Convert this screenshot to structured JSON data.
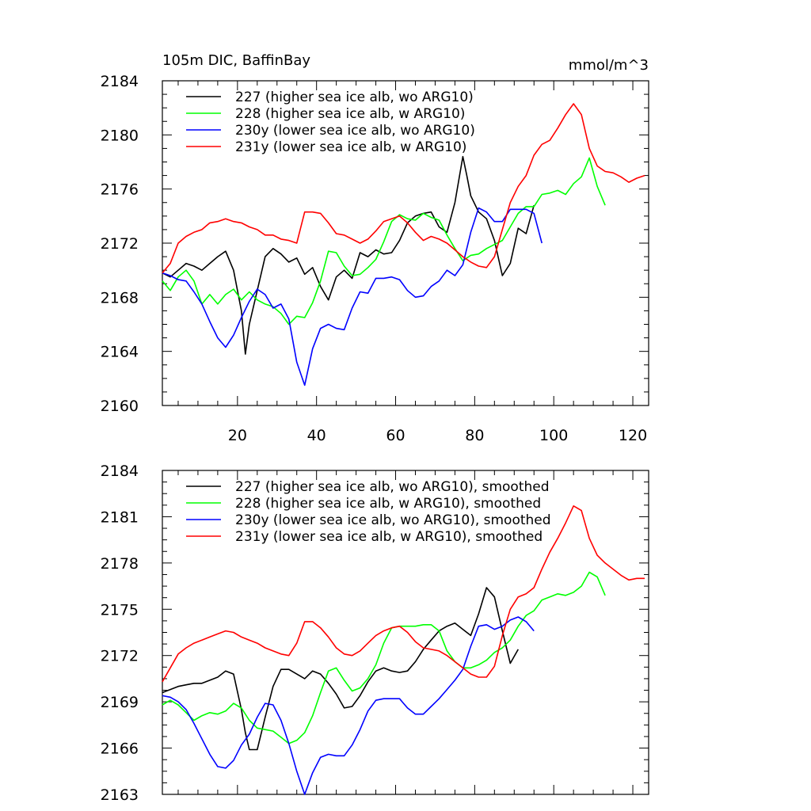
{
  "chart_data": [
    {
      "type": "line",
      "title": "105m DIC, BaffinBay",
      "units": "mmol/m^3",
      "xlabel": "",
      "ylabel": "",
      "xlim": [
        1,
        124
      ],
      "ylim": [
        2160,
        2184
      ],
      "xticks": [
        20,
        40,
        60,
        80,
        100,
        120
      ],
      "xtick_labels": [
        "20",
        "40",
        "60",
        "80",
        "100",
        "120"
      ],
      "yticks": [
        2160,
        2164,
        2168,
        2172,
        2176,
        2180,
        2184
      ],
      "ytick_labels": [
        "2160",
        "2164",
        "2168",
        "2172",
        "2176",
        "2180",
        "2184"
      ],
      "legend_location": "top-left",
      "series": [
        {
          "name": "227 (higher sea ice alb, wo ARG10)",
          "color": "#000000",
          "x": [
            1,
            3,
            5,
            7,
            9,
            11,
            13,
            15,
            17,
            19,
            21,
            22,
            23,
            25,
            27,
            29,
            31,
            33,
            35,
            37,
            39,
            41,
            43,
            45,
            47,
            49,
            51,
            53,
            55,
            57,
            59,
            61,
            63,
            65,
            67,
            69,
            71,
            73,
            75,
            77,
            78,
            79,
            81,
            83,
            85,
            87,
            89,
            91,
            93,
            95
          ],
          "values": [
            2169.8,
            2169.5,
            2170,
            2170.5,
            2170.3,
            2170,
            2170.5,
            2171,
            2171.4,
            2170,
            2167,
            2163.8,
            2166,
            2168.5,
            2171,
            2171.6,
            2171.2,
            2170.6,
            2170.9,
            2169.7,
            2170.2,
            2168.8,
            2167.8,
            2169.5,
            2170,
            2169.4,
            2171.3,
            2171,
            2171.5,
            2171.2,
            2171.3,
            2172.2,
            2173.5,
            2174,
            2174.2,
            2174.3,
            2173.2,
            2172.8,
            2175,
            2178.4,
            2177,
            2175.5,
            2174.3,
            2173.8,
            2172.2,
            2169.6,
            2170.5,
            2173.1,
            2172.7,
            2174.8
          ]
        },
        {
          "name": "228 (higher sea ice alb, w ARG10)",
          "color": "#00ff00",
          "x": [
            1,
            3,
            5,
            7,
            9,
            11,
            13,
            15,
            17,
            19,
            21,
            23,
            25,
            27,
            29,
            31,
            33,
            35,
            37,
            39,
            41,
            43,
            45,
            47,
            49,
            51,
            53,
            55,
            57,
            59,
            61,
            63,
            65,
            67,
            69,
            71,
            73,
            75,
            77,
            79,
            81,
            83,
            85,
            87,
            89,
            91,
            93,
            95,
            97,
            99,
            101,
            103,
            105,
            107,
            109,
            111,
            113
          ],
          "values": [
            2169.2,
            2168.5,
            2169.5,
            2170,
            2169.2,
            2167.5,
            2168.2,
            2167.5,
            2168.2,
            2168.6,
            2167.8,
            2168.4,
            2167.8,
            2167.5,
            2167.3,
            2166.8,
            2166,
            2166.6,
            2166.5,
            2167.6,
            2169.2,
            2171.4,
            2171.3,
            2170.3,
            2169.6,
            2169.7,
            2170.2,
            2170.8,
            2172.1,
            2173.6,
            2174.1,
            2173.8,
            2173.7,
            2174.2,
            2173.9,
            2173.7,
            2172.6,
            2171.6,
            2170.7,
            2171.1,
            2171.2,
            2171.6,
            2171.9,
            2172.2,
            2173.2,
            2174.2,
            2174.7,
            2174.7,
            2175.6,
            2175.7,
            2175.9,
            2175.6,
            2176.4,
            2176.9,
            2178.3,
            2176.2,
            2174.8
          ]
        },
        {
          "name": "230y (lower sea ice alb, wo ARG10)",
          "color": "#0000ff",
          "x": [
            1,
            3,
            5,
            7,
            9,
            11,
            13,
            15,
            17,
            19,
            21,
            23,
            25,
            27,
            29,
            31,
            33,
            35,
            37,
            39,
            41,
            43,
            45,
            47,
            49,
            51,
            53,
            55,
            57,
            59,
            61,
            63,
            65,
            67,
            69,
            71,
            73,
            75,
            77,
            79,
            81,
            83,
            85,
            87,
            89,
            91,
            93,
            95,
            97
          ],
          "values": [
            2169.8,
            2169.6,
            2169.3,
            2169.2,
            2168.4,
            2167.5,
            2166.2,
            2165,
            2164.3,
            2165.2,
            2166.5,
            2167.7,
            2168.6,
            2168.2,
            2167.2,
            2167.5,
            2166.4,
            2163.2,
            2161.5,
            2164.2,
            2165.7,
            2166,
            2165.7,
            2165.6,
            2167.2,
            2168.4,
            2168.3,
            2169.4,
            2169.4,
            2169.5,
            2169.3,
            2168.5,
            2168,
            2168.1,
            2168.8,
            2169.2,
            2170,
            2169.6,
            2170.4,
            2172.8,
            2174.6,
            2174.3,
            2173.6,
            2173.6,
            2174.5,
            2174.5,
            2174.5,
            2174.2,
            2172
          ]
        },
        {
          "name": "231y (lower sea ice alb, w ARG10)",
          "color": "#ff0000",
          "x": [
            1,
            3,
            5,
            7,
            9,
            11,
            13,
            15,
            17,
            19,
            21,
            23,
            25,
            27,
            29,
            31,
            33,
            35,
            37,
            39,
            41,
            43,
            45,
            47,
            49,
            51,
            53,
            55,
            57,
            59,
            61,
            63,
            65,
            67,
            69,
            71,
            73,
            75,
            77,
            79,
            81,
            83,
            85,
            87,
            89,
            91,
            93,
            95,
            97,
            99,
            101,
            103,
            105,
            107,
            109,
            111,
            113,
            115,
            117,
            119,
            121,
            123
          ],
          "values": [
            2169.8,
            2170.5,
            2172,
            2172.5,
            2172.8,
            2173,
            2173.5,
            2173.6,
            2173.8,
            2173.6,
            2173.5,
            2173.2,
            2173,
            2172.6,
            2172.6,
            2172.3,
            2172.2,
            2172,
            2174.3,
            2174.3,
            2174.2,
            2173.5,
            2172.7,
            2172.6,
            2172.3,
            2172,
            2172.3,
            2172.9,
            2173.6,
            2173.8,
            2174,
            2173.5,
            2172.8,
            2172.2,
            2172.5,
            2172.3,
            2172,
            2171.5,
            2171,
            2170.6,
            2170.3,
            2170.2,
            2171,
            2173,
            2175,
            2176.2,
            2177,
            2178.5,
            2179.3,
            2179.6,
            2180.5,
            2181.5,
            2182.3,
            2181.5,
            2179,
            2177.7,
            2177.3,
            2177.2,
            2176.9,
            2176.5,
            2176.8,
            2177
          ]
        }
      ]
    },
    {
      "type": "line",
      "title": "",
      "xlabel": "",
      "ylabel": "",
      "xlim": [
        1,
        124
      ],
      "ylim": [
        2163,
        2184
      ],
      "xticks": [
        20,
        40,
        60,
        80,
        100,
        120
      ],
      "yticks": [
        2163,
        2166,
        2169,
        2172,
        2175,
        2178,
        2181,
        2184
      ],
      "ytick_labels": [
        "2163",
        "2166",
        "2169",
        "2172",
        "2175",
        "2178",
        "2181",
        "2184"
      ],
      "legend_location": "top-left",
      "series": [
        {
          "name": "227 (higher sea ice alb, wo ARG10), smoothed",
          "color": "#000000",
          "x": [
            1,
            3,
            5,
            7,
            9,
            11,
            13,
            15,
            17,
            19,
            21,
            22,
            23,
            25,
            27,
            29,
            31,
            33,
            35,
            37,
            39,
            41,
            43,
            45,
            47,
            49,
            51,
            53,
            55,
            57,
            59,
            61,
            63,
            65,
            67,
            69,
            71,
            73,
            75,
            77,
            78,
            79,
            81,
            83,
            85,
            87,
            89,
            91
          ],
          "values": [
            2169.6,
            2169.8,
            2170,
            2170.1,
            2170.2,
            2170.2,
            2170.4,
            2170.6,
            2171,
            2170.8,
            2168.5,
            2167,
            2165.9,
            2165.9,
            2168,
            2170,
            2171.1,
            2171.1,
            2170.8,
            2170.5,
            2171,
            2170.8,
            2170.2,
            2169.5,
            2168.6,
            2168.7,
            2169.4,
            2170.3,
            2171,
            2171.2,
            2171,
            2170.9,
            2171,
            2171.6,
            2172.4,
            2173,
            2173.6,
            2173.9,
            2174.1,
            2173.7,
            2173.5,
            2173.3,
            2174.7,
            2176.4,
            2175.8,
            2173.6,
            2171.5,
            2172.4
          ]
        },
        {
          "name": "228 (higher sea ice alb, w ARG10), smoothed",
          "color": "#00ff00",
          "x": [
            1,
            3,
            5,
            7,
            9,
            11,
            13,
            15,
            17,
            19,
            21,
            23,
            25,
            27,
            29,
            31,
            33,
            35,
            37,
            39,
            41,
            43,
            45,
            47,
            49,
            51,
            53,
            55,
            57,
            59,
            61,
            63,
            65,
            67,
            69,
            71,
            73,
            75,
            77,
            79,
            81,
            83,
            85,
            87,
            89,
            91,
            93,
            95,
            97,
            99,
            101,
            103,
            105,
            107,
            109,
            111,
            113
          ],
          "values": [
            2168.8,
            2169.1,
            2168.8,
            2168.3,
            2167.8,
            2168.1,
            2168.3,
            2168.2,
            2168.4,
            2168.9,
            2168.6,
            2167.8,
            2167.3,
            2167.2,
            2167.1,
            2166.7,
            2166.3,
            2166.5,
            2167,
            2168.1,
            2169.6,
            2171,
            2171.2,
            2170.4,
            2169.7,
            2169.9,
            2170.5,
            2171.4,
            2172.8,
            2173.8,
            2173.9,
            2173.9,
            2173.9,
            2174,
            2174,
            2173.6,
            2172.3,
            2171.6,
            2171.2,
            2171.2,
            2171.4,
            2171.7,
            2172.2,
            2172.5,
            2173,
            2173.9,
            2174.6,
            2174.9,
            2175.6,
            2175.8,
            2176,
            2175.9,
            2176.1,
            2176.5,
            2177.4,
            2177.1,
            2175.9
          ]
        },
        {
          "name": "230y (lower sea ice alb, wo ARG10), smoothed",
          "color": "#0000ff",
          "x": [
            1,
            3,
            5,
            7,
            9,
            11,
            13,
            15,
            17,
            19,
            21,
            23,
            25,
            27,
            29,
            31,
            33,
            35,
            37,
            39,
            41,
            43,
            45,
            47,
            49,
            51,
            53,
            55,
            57,
            59,
            61,
            63,
            65,
            67,
            69,
            71,
            73,
            75,
            77,
            79,
            81,
            83,
            85,
            87,
            89,
            91,
            93,
            95
          ],
          "values": [
            2169.4,
            2169.3,
            2169,
            2168.5,
            2167.6,
            2166.6,
            2165.6,
            2164.8,
            2164.7,
            2165.2,
            2166.2,
            2166.9,
            2168,
            2168.9,
            2168.8,
            2167.8,
            2166.3,
            2164.5,
            2163,
            2164.4,
            2165.4,
            2165.6,
            2165.5,
            2165.5,
            2166.2,
            2167.2,
            2168.4,
            2169.1,
            2169.2,
            2169.2,
            2169.2,
            2168.6,
            2168.2,
            2168.2,
            2168.7,
            2169.2,
            2169.8,
            2170.4,
            2171.1,
            2172.6,
            2173.9,
            2174,
            2173.7,
            2173.9,
            2174.3,
            2174.5,
            2174.2,
            2173.6
          ]
        },
        {
          "name": "231y (lower sea ice alb, w ARG10), smoothed",
          "color": "#ff0000",
          "x": [
            1,
            3,
            5,
            7,
            9,
            11,
            13,
            15,
            17,
            19,
            21,
            23,
            25,
            27,
            29,
            31,
            33,
            35,
            37,
            39,
            41,
            43,
            45,
            47,
            49,
            51,
            53,
            55,
            57,
            59,
            61,
            63,
            65,
            67,
            69,
            71,
            73,
            75,
            77,
            79,
            81,
            83,
            85,
            87,
            89,
            91,
            93,
            95,
            97,
            99,
            101,
            103,
            105,
            107,
            109,
            111,
            113,
            115,
            117,
            119,
            121,
            123
          ],
          "values": [
            2170.3,
            2171.2,
            2172.1,
            2172.5,
            2172.8,
            2173,
            2173.2,
            2173.4,
            2173.6,
            2173.5,
            2173.2,
            2173,
            2172.8,
            2172.5,
            2172.3,
            2172.1,
            2172,
            2172.8,
            2174.2,
            2174.2,
            2173.8,
            2173.2,
            2172.5,
            2172.1,
            2172,
            2172.3,
            2172.8,
            2173.3,
            2173.6,
            2173.8,
            2173.9,
            2173.5,
            2172.9,
            2172.5,
            2172.4,
            2172.3,
            2172,
            2171.6,
            2171.2,
            2170.8,
            2170.6,
            2170.6,
            2171.3,
            2173.3,
            2175,
            2175.8,
            2176,
            2176.4,
            2177.6,
            2178.7,
            2179.6,
            2180.6,
            2181.7,
            2181.4,
            2179.6,
            2178.5,
            2178,
            2177.6,
            2177.2,
            2176.9,
            2177,
            2177
          ]
        }
      ]
    }
  ]
}
